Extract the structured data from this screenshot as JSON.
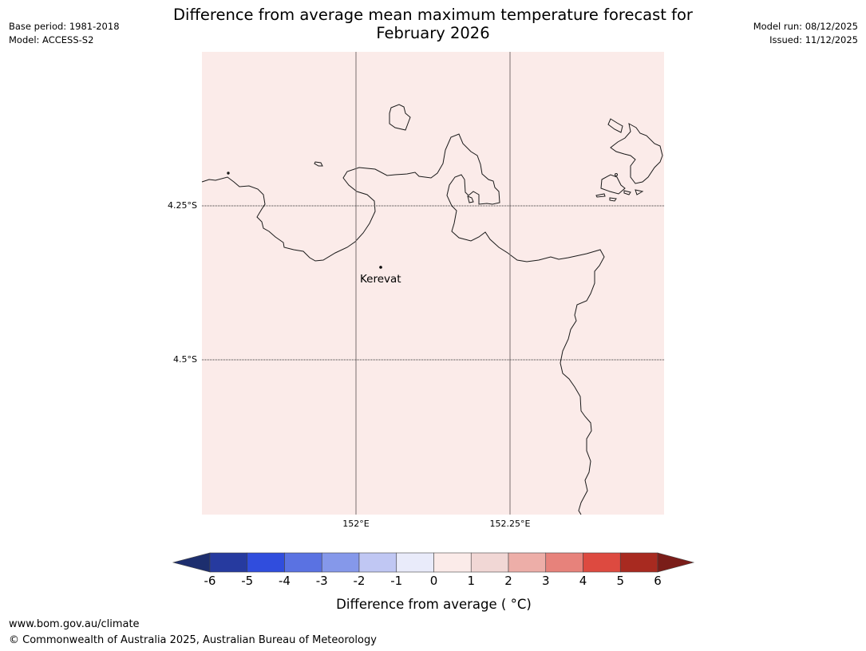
{
  "header": {
    "title_line1": "Difference from average mean maximum temperature forecast for",
    "title_line2": "February 2026",
    "base_period": "Base period: 1981-2018",
    "model": "Model: ACCESS-S2",
    "model_run": "Model run: 08/12/2025",
    "issued": "Issued: 11/12/2025"
  },
  "map": {
    "fill_color": "#fbebe9",
    "lat_labels": [
      "4.25°S",
      "4.5°S"
    ],
    "lon_labels": [
      "152°E",
      "152.25°E"
    ],
    "places": [
      {
        "name": "Kerevat"
      }
    ],
    "category": "0 to 1"
  },
  "colorbar": {
    "ticks": [
      "-6",
      "-5",
      "-4",
      "-3",
      "-2",
      "-1",
      "0",
      "1",
      "2",
      "3",
      "4",
      "5",
      "6"
    ],
    "colors": [
      "#263a9f",
      "#304ddd",
      "#5a72e2",
      "#8598ea",
      "#c0c7f3",
      "#e9ebfa",
      "#fbebe9",
      "#f1d7d5",
      "#edaea8",
      "#e7827b",
      "#dd4a40",
      "#a82a20"
    ],
    "under_color": "#1d2e6e",
    "over_color": "#7a1d19",
    "label": "Difference from average ( °C)"
  },
  "footer": {
    "url": "www.bom.gov.au/climate",
    "copyright": "© Commonwealth of Australia 2025, Australian Bureau of Meteorology"
  }
}
